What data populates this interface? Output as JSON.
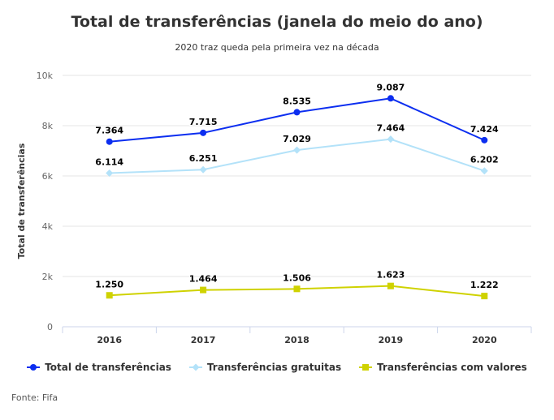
{
  "chart_data": {
    "type": "line",
    "title": "Total de transferências (janela do meio do ano)",
    "subtitle": "2020 traz queda pela primeira vez na década",
    "xlabel": "",
    "ylabel": "Total de transferências",
    "categories": [
      "2016",
      "2017",
      "2018",
      "2019",
      "2020"
    ],
    "ylim": [
      0,
      10000
    ],
    "yticks": [
      {
        "v": 0,
        "label": "0"
      },
      {
        "v": 2000,
        "label": "2k"
      },
      {
        "v": 4000,
        "label": "4k"
      },
      {
        "v": 6000,
        "label": "6k"
      },
      {
        "v": 8000,
        "label": "8k"
      },
      {
        "v": 10000,
        "label": "10k"
      }
    ],
    "grid": true,
    "legend_position": "bottom",
    "series": [
      {
        "name": "Total de transferências",
        "color": "#0c2ef0",
        "marker": "circle",
        "values": [
          7364,
          7715,
          8535,
          9087,
          7424
        ],
        "labels": [
          "7.364",
          "7.715",
          "8.535",
          "9.087",
          "7.424"
        ]
      },
      {
        "name": "Transferências gratuitas",
        "color": "#b3e2f9",
        "marker": "diamond",
        "values": [
          6114,
          6251,
          7029,
          7464,
          6202
        ],
        "labels": [
          "6.114",
          "6.251",
          "7.029",
          "7.464",
          "6.202"
        ]
      },
      {
        "name": "Transferências com valores",
        "color": "#cfd200",
        "marker": "square",
        "values": [
          1250,
          1464,
          1506,
          1623,
          1222
        ],
        "labels": [
          "1.250",
          "1.464",
          "1.506",
          "1.623",
          "1.222"
        ]
      }
    ]
  },
  "source": "Fonte: Fifa"
}
